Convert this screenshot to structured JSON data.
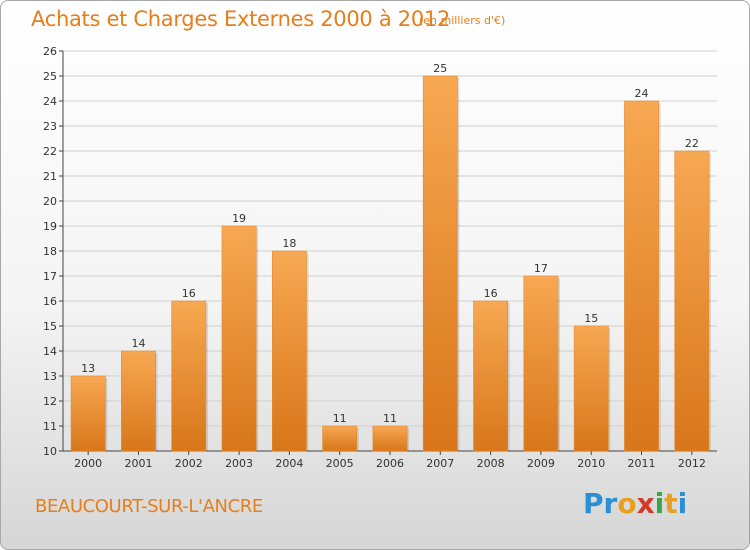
{
  "header": {
    "title": "Achats et Charges Externes 2000 à 2012",
    "unit": "(en milliers d'€)"
  },
  "footer": {
    "commune": "BEAUCOURT-SUR-L'ANCRE",
    "logo": "Proxiti"
  },
  "colors": {
    "accent": "#e67e1a",
    "bar_top": "#f7a852",
    "bar_bottom": "#d8761a",
    "grid": "#d0d0d0"
  },
  "chart_data": {
    "type": "bar",
    "categories": [
      "2000",
      "2001",
      "2002",
      "2003",
      "2004",
      "2005",
      "2006",
      "2007",
      "2008",
      "2009",
      "2010",
      "2011",
      "2012"
    ],
    "values": [
      13,
      14,
      16,
      19,
      18,
      11,
      11,
      25,
      16,
      17,
      15,
      24,
      22
    ],
    "title": "Achats et Charges Externes 2000 à 2012",
    "subtitle": "(en milliers d'€)",
    "xlabel": "",
    "ylabel": "",
    "ylim": [
      10,
      26
    ],
    "yticks": [
      10,
      11,
      12,
      13,
      14,
      15,
      16,
      17,
      18,
      19,
      20,
      21,
      22,
      23,
      24,
      25,
      26
    ],
    "grid": true,
    "data_labels": true
  }
}
